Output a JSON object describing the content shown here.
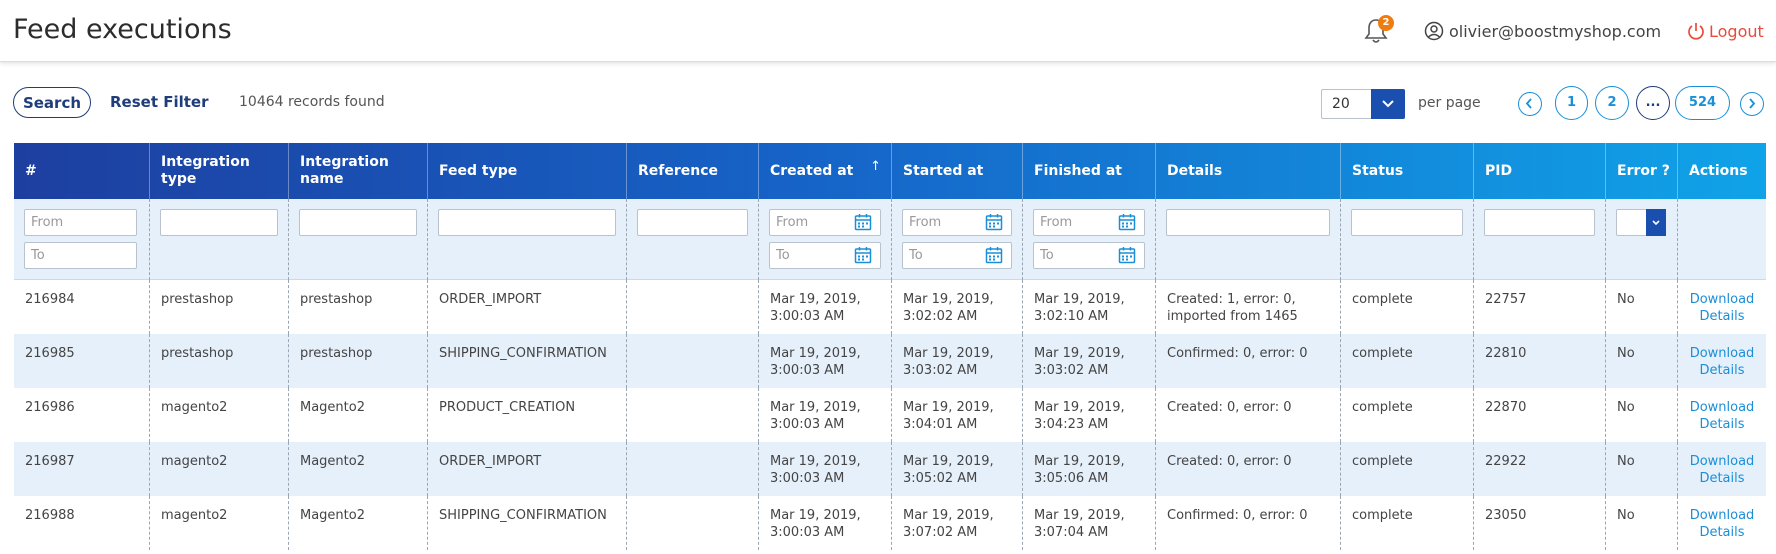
{
  "header": {
    "title": "Feed executions",
    "notification_count": "2",
    "user_email": "olivier@boostmyshop.com",
    "logout_label": "Logout"
  },
  "toolbar": {
    "search_label": "Search",
    "reset_label": "Reset Filter",
    "records_text": "10464 records found",
    "per_page_value": "20",
    "per_page_label": "per page"
  },
  "pagination": {
    "pages": [
      "1",
      "2",
      "...",
      "524"
    ]
  },
  "table": {
    "columns": [
      "#",
      "Integration type",
      "Integration name",
      "Feed type",
      "Reference",
      "Created at",
      "Started at",
      "Finished at",
      "Details",
      "Status",
      "PID",
      "Error ?",
      "Actions"
    ],
    "sort_indicator": "↑",
    "filters": {
      "from_placeholder": "From",
      "to_placeholder": "To"
    },
    "rows": [
      {
        "id": "216984",
        "integration_type": "prestashop",
        "integration_name": "prestashop",
        "feed_type": "ORDER_IMPORT",
        "reference": "",
        "created_at": "Mar 19, 2019, 3:00:03 AM",
        "started_at": "Mar 19, 2019, 3:02:02 AM",
        "finished_at": "Mar 19, 2019, 3:02:10 AM",
        "details": "Created: 1, error: 0, imported from 1465",
        "status": "complete",
        "pid": "22757",
        "error": "No",
        "action": "Download Details"
      },
      {
        "id": "216985",
        "integration_type": "prestashop",
        "integration_name": "prestashop",
        "feed_type": "SHIPPING_CONFIRMATION",
        "reference": "",
        "created_at": "Mar 19, 2019, 3:00:03 AM",
        "started_at": "Mar 19, 2019, 3:03:02 AM",
        "finished_at": "Mar 19, 2019, 3:03:02 AM",
        "details": "Confirmed: 0, error: 0",
        "status": "complete",
        "pid": "22810",
        "error": "No",
        "action": "Download Details"
      },
      {
        "id": "216986",
        "integration_type": "magento2",
        "integration_name": "Magento2",
        "feed_type": "PRODUCT_CREATION",
        "reference": "",
        "created_at": "Mar 19, 2019, 3:00:03 AM",
        "started_at": "Mar 19, 2019, 3:04:01 AM",
        "finished_at": "Mar 19, 2019, 3:04:23 AM",
        "details": "Created: 0, error: 0",
        "status": "complete",
        "pid": "22870",
        "error": "No",
        "action": "Download Details"
      },
      {
        "id": "216987",
        "integration_type": "magento2",
        "integration_name": "Magento2",
        "feed_type": "ORDER_IMPORT",
        "reference": "",
        "created_at": "Mar 19, 2019, 3:00:03 AM",
        "started_at": "Mar 19, 2019, 3:05:02 AM",
        "finished_at": "Mar 19, 2019, 3:05:06 AM",
        "details": "Created: 0, error: 0",
        "status": "complete",
        "pid": "22922",
        "error": "No",
        "action": "Download Details"
      },
      {
        "id": "216988",
        "integration_type": "magento2",
        "integration_name": "Magento2",
        "feed_type": "SHIPPING_CONFIRMATION",
        "reference": "",
        "created_at": "Mar 19, 2019, 3:00:03 AM",
        "started_at": "Mar 19, 2019, 3:07:02 AM",
        "finished_at": "Mar 19, 2019, 3:07:04 AM",
        "details": "Confirmed: 0, error: 0",
        "status": "complete",
        "pid": "23050",
        "error": "No",
        "action": "Download Details"
      }
    ]
  },
  "colors": {
    "header_gradient_start": "#1d3fa0",
    "header_gradient_end": "#10a3e8",
    "link": "#1a8fd8",
    "logout": "#e84a3c",
    "badge": "#f07c10"
  }
}
